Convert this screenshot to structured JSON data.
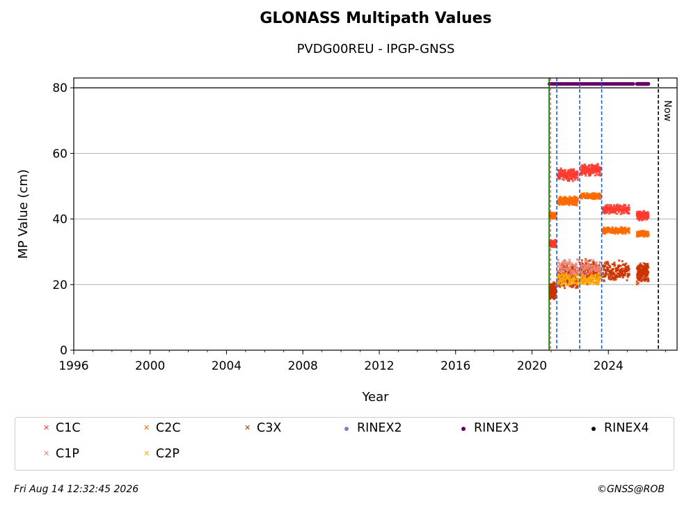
{
  "chart_data": {
    "type": "scatter",
    "title": "GLONASS Multipath Values",
    "subtitle": "PVDG00REU - IPGP-GNSS",
    "xlabel": "Year",
    "ylabel": "MP Value (cm)",
    "xlim": [
      1996,
      2027.6
    ],
    "ylim": [
      0,
      83
    ],
    "x_ticks": [
      1996,
      2000,
      2004,
      2008,
      2012,
      2016,
      2020,
      2024
    ],
    "y_ticks": [
      0,
      20,
      40,
      60,
      80
    ],
    "grid": "horizontal",
    "reference_line_y": 80,
    "now_label": "Now",
    "now_year": 2026.62,
    "start_line_year": 2020.9,
    "event_lines_years": [
      2021.3,
      2022.5,
      2023.65
    ],
    "legend_position": "bottom",
    "series": [
      {
        "name": "C1C",
        "color": "#ff3b2f",
        "marker": "x",
        "segments": [
          {
            "x": [
              2020.92,
              2021.25
            ],
            "y": 32.5,
            "spread": 1.2
          },
          {
            "x": [
              2021.35,
              2022.4
            ],
            "y": 53.5,
            "spread": 2.0
          },
          {
            "x": [
              2022.55,
              2023.6
            ],
            "y": 55.0,
            "spread": 2.0
          },
          {
            "x": [
              2023.7,
              2025.1
            ],
            "y": 43.0,
            "spread": 1.6
          },
          {
            "x": [
              2025.5,
              2026.1
            ],
            "y": 41.0,
            "spread": 1.5
          }
        ]
      },
      {
        "name": "C2C",
        "color": "#ff6a00",
        "marker": "x",
        "segments": [
          {
            "x": [
              2020.92,
              2021.25
            ],
            "y": 41.0,
            "spread": 1.0
          },
          {
            "x": [
              2021.35,
              2022.4
            ],
            "y": 45.5,
            "spread": 1.5
          },
          {
            "x": [
              2022.55,
              2023.6
            ],
            "y": 47.0,
            "spread": 1.0
          },
          {
            "x": [
              2023.7,
              2025.1
            ],
            "y": 36.5,
            "spread": 1.2
          },
          {
            "x": [
              2025.5,
              2026.1
            ],
            "y": 35.5,
            "spread": 1.0
          }
        ]
      },
      {
        "name": "C3X",
        "color": "#cc3300",
        "marker": "x",
        "segments": [
          {
            "x": [
              2020.92,
              2021.25
            ],
            "y": 18.0,
            "spread": 3.0
          },
          {
            "x": [
              2021.35,
              2022.4
            ],
            "y": 22.5,
            "spread": 4.0
          },
          {
            "x": [
              2022.55,
              2023.6
            ],
            "y": 24.0,
            "spread": 4.0
          },
          {
            "x": [
              2023.7,
              2025.1
            ],
            "y": 24.0,
            "spread": 3.5
          },
          {
            "x": [
              2025.5,
              2026.1
            ],
            "y": 23.5,
            "spread": 3.5
          }
        ]
      },
      {
        "name": "C1P",
        "color": "#f08070",
        "marker": "x",
        "segments": [
          {
            "x": [
              2021.35,
              2023.6
            ],
            "y": 25.0,
            "spread": 3.0
          }
        ]
      },
      {
        "name": "C2P",
        "color": "#ffaa00",
        "marker": "x",
        "segments": [
          {
            "x": [
              2021.35,
              2023.6
            ],
            "y": 21.5,
            "spread": 2.0
          }
        ]
      },
      {
        "name": "RINEX2",
        "color": "#8878c0",
        "marker": "dot",
        "segments": []
      },
      {
        "name": "RINEX3",
        "color": "#660066",
        "marker": "dot",
        "segments": [
          {
            "x": [
              2020.92,
              2025.3
            ],
            "y": 81.2,
            "spread": 0
          },
          {
            "x": [
              2025.5,
              2026.1
            ],
            "y": 81.2,
            "spread": 0
          }
        ]
      },
      {
        "name": "RINEX4",
        "color": "#1a0010",
        "marker": "dot",
        "segments": []
      }
    ]
  },
  "legend": {
    "items": [
      {
        "label": "C1C",
        "color": "#ff3b2f",
        "marker": "x"
      },
      {
        "label": "C2C",
        "color": "#ff6a00",
        "marker": "x"
      },
      {
        "label": "C3X",
        "color": "#cc3300",
        "marker": "x"
      },
      {
        "label": "RINEX2",
        "color": "#8878c0",
        "marker": "dot"
      },
      {
        "label": "RINEX3",
        "color": "#660066",
        "marker": "dot"
      },
      {
        "label": "RINEX4",
        "color": "#1a0010",
        "marker": "dot"
      },
      {
        "label": "C1P",
        "color": "#f08070",
        "marker": "x"
      },
      {
        "label": "C2P",
        "color": "#ffaa00",
        "marker": "x"
      }
    ]
  },
  "footer": {
    "timestamp": "Fri Aug 14 12:32:45 2026",
    "copyright": "©GNSS@ROB"
  },
  "colors": {
    "grid": "#b0b0b0",
    "start_line": "#008000",
    "event_line": "#1f5fbf",
    "now_line": "#000000"
  }
}
